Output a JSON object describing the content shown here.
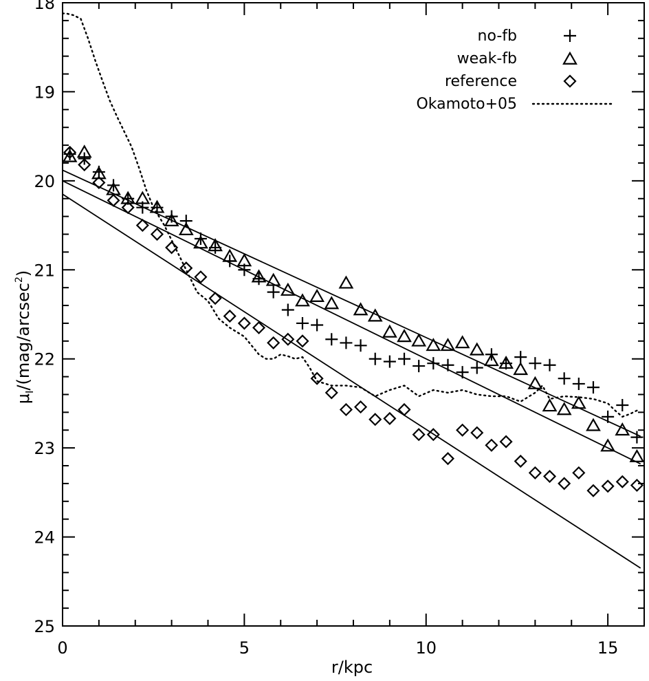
{
  "chart_data": {
    "type": "scatter",
    "xlabel": "r/kpc",
    "ylabel": "μI/(mag/arcsec²)",
    "ylabel_main": "μ",
    "ylabel_sub": "I",
    "ylabel_rest": "/(mag/arcsec",
    "ylabel_sup": "2",
    "ylabel_close": ")",
    "xlim": [
      0,
      16
    ],
    "ylim": [
      25,
      18
    ],
    "y_inverted": true,
    "xticks": [
      0,
      5,
      10,
      15
    ],
    "yticks": [
      18,
      19,
      20,
      21,
      22,
      23,
      24,
      25
    ],
    "legend_position": "top-right",
    "series": [
      {
        "name": "no-fb",
        "marker": "plus",
        "x": [
          0.2,
          0.6,
          1.0,
          1.4,
          1.8,
          2.2,
          2.6,
          3.0,
          3.4,
          3.8,
          4.2,
          4.6,
          5.0,
          5.4,
          5.8,
          6.2,
          6.6,
          7.0,
          7.4,
          7.8,
          8.2,
          8.6,
          9.0,
          9.4,
          9.8,
          10.2,
          10.6,
          11.0,
          11.4,
          11.8,
          12.2,
          12.6,
          13.0,
          13.4,
          13.8,
          14.2,
          14.6,
          15.0,
          15.4,
          15.8
        ],
        "y": [
          19.7,
          19.75,
          19.9,
          20.05,
          20.2,
          20.3,
          20.3,
          20.4,
          20.45,
          20.65,
          20.75,
          20.9,
          21.0,
          21.1,
          21.25,
          21.45,
          21.6,
          21.62,
          21.78,
          21.82,
          21.85,
          22.0,
          22.03,
          22.0,
          22.08,
          22.05,
          22.07,
          22.15,
          22.1,
          21.95,
          22.05,
          21.98,
          22.05,
          22.07,
          22.22,
          22.28,
          22.32,
          22.65,
          22.52,
          22.88
        ]
      },
      {
        "name": "weak-fb",
        "marker": "triangle",
        "x": [
          0.2,
          0.6,
          1.0,
          1.4,
          1.8,
          2.2,
          2.6,
          3.0,
          3.4,
          3.8,
          4.2,
          4.6,
          5.0,
          5.4,
          5.8,
          6.2,
          6.6,
          7.0,
          7.4,
          7.8,
          8.2,
          8.6,
          9.0,
          9.4,
          9.8,
          10.2,
          10.6,
          11.0,
          11.4,
          11.8,
          12.2,
          12.6,
          13.0,
          13.4,
          13.8,
          14.2,
          14.6,
          15.0,
          15.4,
          15.8
        ],
        "y": [
          19.73,
          19.68,
          19.92,
          20.1,
          20.2,
          20.2,
          20.3,
          20.45,
          20.55,
          20.7,
          20.73,
          20.85,
          20.9,
          21.08,
          21.12,
          21.23,
          21.35,
          21.3,
          21.38,
          21.15,
          21.45,
          21.52,
          21.7,
          21.75,
          21.8,
          21.85,
          21.85,
          21.82,
          21.9,
          22.02,
          22.05,
          22.12,
          22.28,
          22.53,
          22.57,
          22.5,
          22.75,
          22.98,
          22.8,
          23.1
        ]
      },
      {
        "name": "reference",
        "marker": "diamond",
        "x": [
          0.2,
          0.6,
          1.0,
          1.4,
          1.8,
          2.2,
          2.6,
          3.0,
          3.4,
          3.8,
          4.2,
          4.6,
          5.0,
          5.4,
          5.8,
          6.2,
          6.6,
          7.0,
          7.4,
          7.8,
          8.2,
          8.6,
          9.0,
          9.4,
          9.8,
          10.2,
          10.6,
          11.0,
          11.4,
          11.8,
          12.2,
          12.6,
          13.0,
          13.4,
          13.8,
          14.2,
          14.6,
          15.0,
          15.4,
          15.8
        ],
        "y": [
          19.68,
          19.82,
          20.02,
          20.22,
          20.3,
          20.5,
          20.6,
          20.75,
          20.98,
          21.08,
          21.32,
          21.52,
          21.6,
          21.65,
          21.82,
          21.78,
          21.8,
          22.22,
          22.38,
          22.57,
          22.54,
          22.68,
          22.67,
          22.57,
          22.85,
          22.85,
          23.12,
          22.8,
          22.83,
          22.97,
          22.93,
          23.15,
          23.28,
          23.32,
          23.4,
          23.28,
          23.48,
          23.43,
          23.38,
          23.42
        ]
      },
      {
        "name": "Okamoto+05",
        "marker": "dotted-line",
        "x": [
          0.0,
          0.1,
          0.3,
          0.5,
          0.7,
          0.9,
          1.1,
          1.3,
          1.5,
          1.7,
          1.9,
          2.1,
          2.3,
          2.5,
          2.8,
          3.1,
          3.4,
          3.7,
          4.0,
          4.3,
          4.6,
          5.0,
          5.4,
          5.6,
          5.8,
          6.0,
          6.2,
          6.4,
          6.6,
          6.8,
          7.0,
          7.4,
          7.8,
          8.2,
          8.6,
          9.0,
          9.4,
          9.8,
          10.2,
          10.6,
          11.0,
          11.4,
          11.8,
          12.2,
          12.6,
          13.0,
          13.2,
          13.4,
          13.8,
          14.2,
          14.6,
          15.0,
          15.2,
          15.4,
          15.6,
          15.8
        ],
        "y": [
          18.12,
          18.12,
          18.14,
          18.18,
          18.4,
          18.65,
          18.88,
          19.1,
          19.28,
          19.45,
          19.62,
          19.85,
          20.1,
          20.3,
          20.5,
          20.75,
          21.0,
          21.25,
          21.35,
          21.55,
          21.65,
          21.75,
          21.95,
          22.0,
          22.0,
          21.95,
          21.97,
          22.0,
          21.98,
          22.1,
          22.25,
          22.3,
          22.3,
          22.32,
          22.42,
          22.35,
          22.3,
          22.42,
          22.35,
          22.38,
          22.35,
          22.4,
          22.42,
          22.42,
          22.48,
          22.38,
          22.3,
          22.45,
          22.42,
          22.43,
          22.45,
          22.5,
          22.58,
          22.65,
          22.62,
          22.58
        ]
      }
    ],
    "fit_lines": [
      {
        "x": [
          0.0,
          15.9
        ],
        "y": [
          19.88,
          22.87
        ]
      },
      {
        "x": [
          0.0,
          15.9
        ],
        "y": [
          20.0,
          23.18
        ]
      },
      {
        "x": [
          0.0,
          15.9
        ],
        "y": [
          20.15,
          24.35
        ]
      }
    ]
  }
}
